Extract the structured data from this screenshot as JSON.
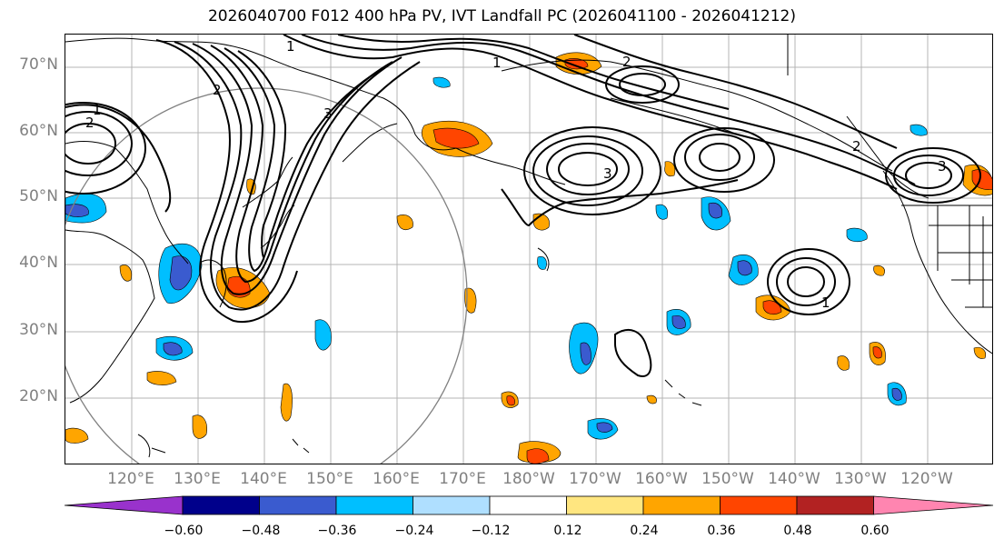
{
  "title": "2026040700 F012 400 hPa PV, IVT Landfall PC (2026041100 - 2026041212)",
  "lat_labels": [
    "70°N",
    "60°N",
    "50°N",
    "40°N",
    "30°N",
    "20°N"
  ],
  "lon_labels": [
    "120°E",
    "130°E",
    "140°E",
    "150°E",
    "160°E",
    "170°E",
    "180°W",
    "170°W",
    "160°W",
    "150°W",
    "140°W",
    "130°W",
    "120°W"
  ],
  "contour_labels": [
    "1",
    "2",
    "1",
    "2",
    "3",
    "3",
    "2",
    "1",
    "2",
    "3",
    "1"
  ],
  "colorbar": {
    "colors": [
      "#9932cc",
      "#00008b",
      "#3a5bcf",
      "#00bfff",
      "#afdfff",
      "#ffffff",
      "#ffe680",
      "#ffa500",
      "#ff4500",
      "#b22222",
      "#ff85b0"
    ],
    "ticks": [
      "−0.60",
      "−0.48",
      "−0.36",
      "−0.24",
      "−0.12",
      "0.12",
      "0.24",
      "0.36",
      "0.48",
      "0.60"
    ]
  },
  "colors": {
    "coast": "#000000",
    "grid": "#b4b4b4",
    "circle": "#808080",
    "contour": "#000000"
  }
}
